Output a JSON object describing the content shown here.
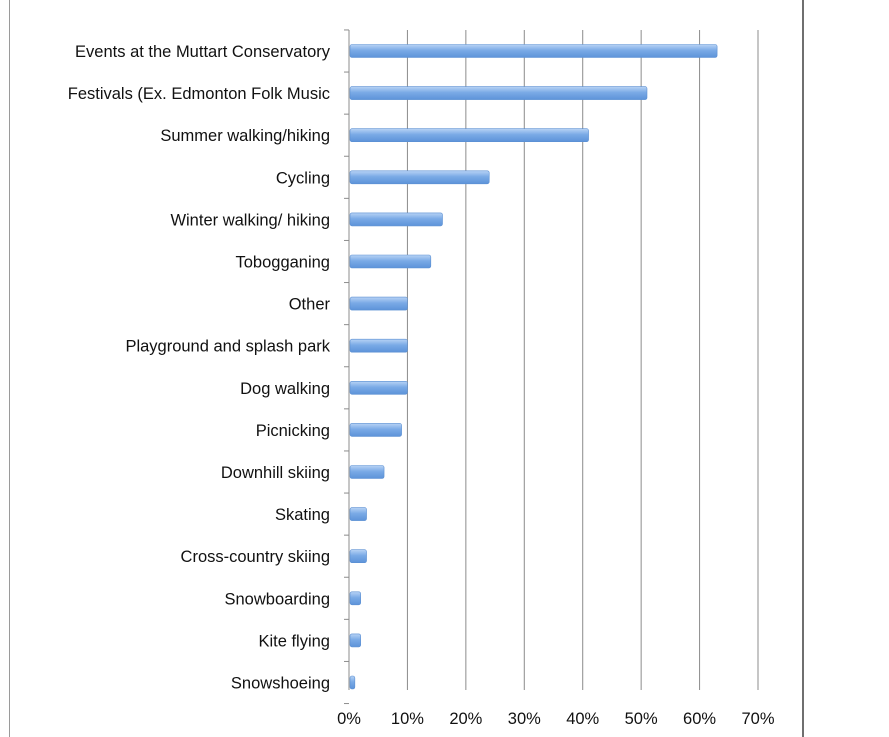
{
  "chart_data": {
    "type": "bar",
    "orientation": "horizontal",
    "title": "",
    "xlabel": "",
    "ylabel": "",
    "xlim": [
      0,
      70
    ],
    "x_unit": "%",
    "grid": true,
    "legend": "none",
    "colors": {
      "bar": "#7aaae6",
      "bar_highlight": "#b8d3f5",
      "grid": "#8c8c8c",
      "axis": "#8c8c8c"
    },
    "x_ticks": [
      "0%",
      "10%",
      "20%",
      "30%",
      "40%",
      "50%",
      "60%",
      "70%"
    ],
    "categories": [
      "Events at the Muttart Conservatory",
      "Festivals (Ex. Edmonton Folk Music",
      "Summer walking/hiking",
      "Cycling",
      "Winter walking/ hiking",
      "Tobogganing",
      "Other",
      "Playground and splash park",
      "Dog walking",
      "Picnicking",
      "Downhill skiing",
      "Skating",
      "Cross-country skiing",
      "Snowboarding",
      "Kite flying",
      "Snowshoeing"
    ],
    "values": [
      63,
      51,
      41,
      24,
      16,
      14,
      10,
      10,
      10,
      9,
      6,
      3,
      3,
      2,
      2,
      1
    ]
  }
}
